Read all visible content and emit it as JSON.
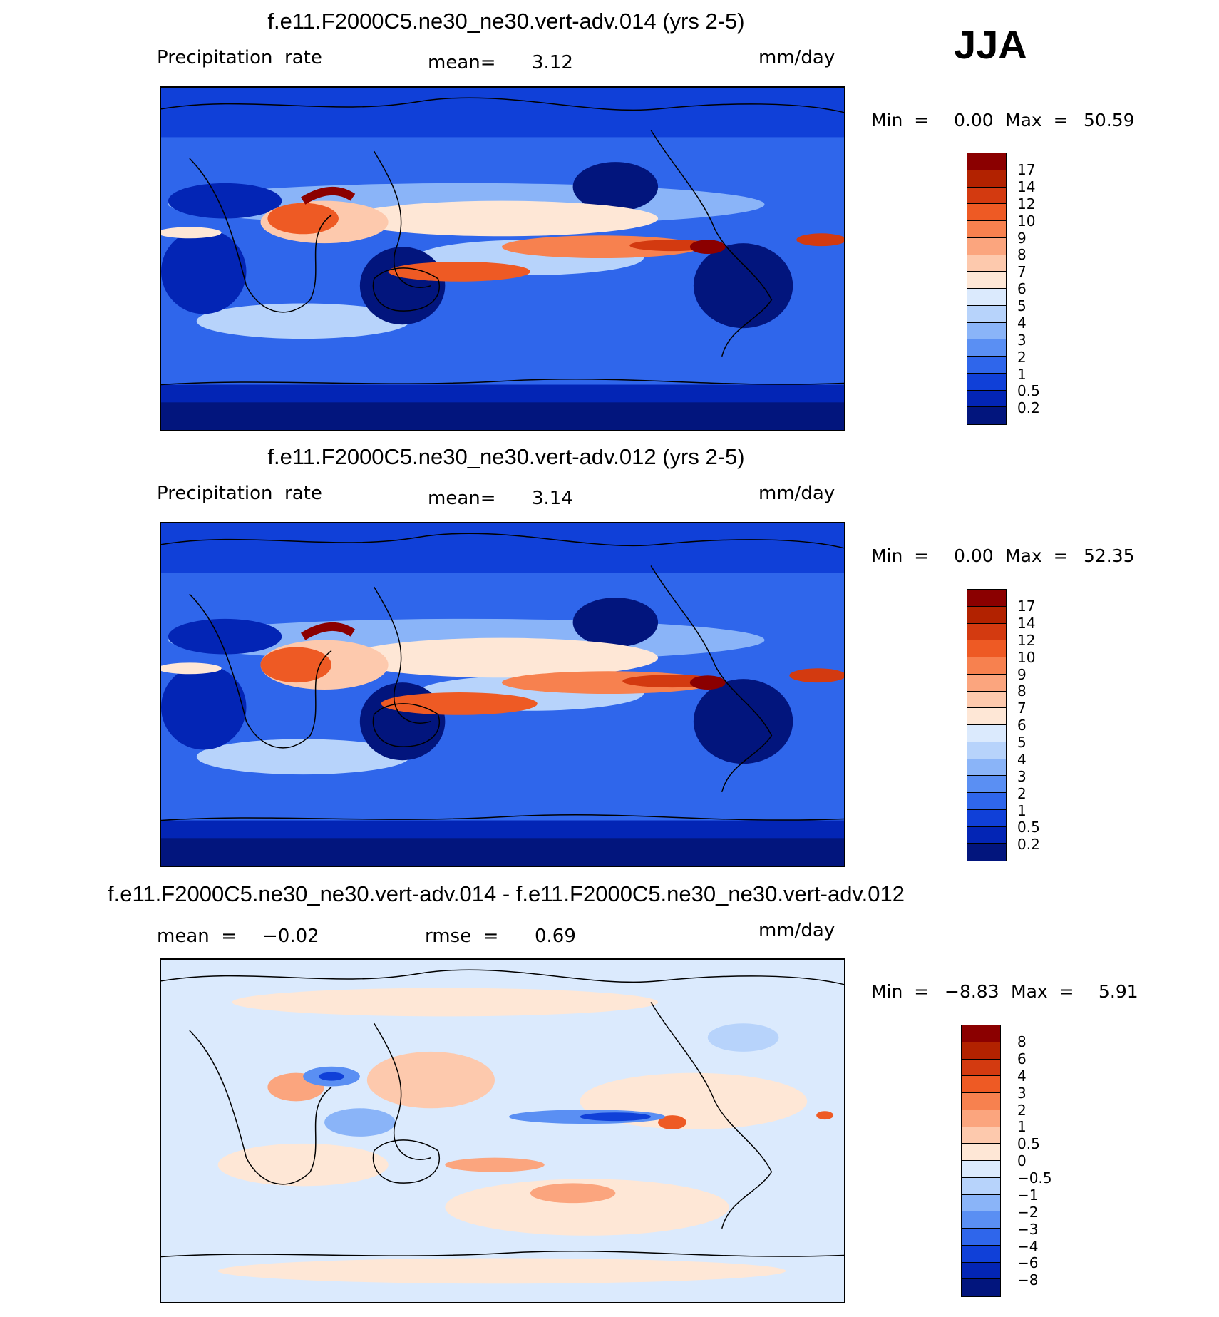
{
  "season": "JJA",
  "panels": [
    {
      "title": "f.e11.F2000C5.ne30_ne30.vert-adv.014 (yrs 2-5)",
      "left_label": "Precipitation  rate",
      "mid_label": "mean=",
      "mid_value": "3.12",
      "right_label": "mm/day",
      "min_label": "Min  =",
      "min_value": "0.00",
      "max_label": "Max  =",
      "max_value": "50.59",
      "colorbar_labels": [
        "17",
        "14",
        "12",
        "10",
        "9",
        "8",
        "7",
        "6",
        "5",
        "4",
        "3",
        "2",
        "1",
        "0.5",
        "0.2"
      ]
    },
    {
      "title": "f.e11.F2000C5.ne30_ne30.vert-adv.012 (yrs 2-5)",
      "left_label": "Precipitation  rate",
      "mid_label": "mean=",
      "mid_value": "3.14",
      "right_label": "mm/day",
      "min_label": "Min  =",
      "min_value": "0.00",
      "max_label": "Max  =",
      "max_value": "52.35",
      "colorbar_labels": [
        "17",
        "14",
        "12",
        "10",
        "9",
        "8",
        "7",
        "6",
        "5",
        "4",
        "3",
        "2",
        "1",
        "0.5",
        "0.2"
      ]
    },
    {
      "title": "f.e11.F2000C5.ne30_ne30.vert-adv.014 - f.e11.F2000C5.ne30_ne30.vert-adv.012",
      "left_label": "mean  =",
      "left_value": "−0.02",
      "mid_label": "rmse  =",
      "mid_value": "0.69",
      "right_label": "mm/day",
      "min_label": "Min  =",
      "min_value": "−8.83",
      "max_label": "Max  =",
      "max_value": "5.91",
      "colorbar_labels": [
        "8",
        "6",
        "4",
        "3",
        "2",
        "1",
        "0.5",
        "0",
        "−0.5",
        "−1",
        "−2",
        "−3",
        "−4",
        "−6",
        "−8"
      ]
    }
  ],
  "colors": {
    "precip_scale": [
      "#8b0000",
      "#b22200",
      "#d33a10",
      "#ee5a24",
      "#f7814f",
      "#fba57e",
      "#fdc9ad",
      "#fee7d6",
      "#dbeafd",
      "#b7d3fb",
      "#8ab4f8",
      "#5a8ff3",
      "#2f66eb",
      "#1040d8",
      "#0325b5",
      "#02157d"
    ],
    "diff_scale": [
      "#8b0000",
      "#b22200",
      "#d33a10",
      "#ee5a24",
      "#f7814f",
      "#fba57e",
      "#fdc9ad",
      "#fee7d6",
      "#dbeafd",
      "#b7d3fb",
      "#8ab4f8",
      "#5a8ff3",
      "#2f66eb",
      "#1040d8",
      "#0325b5",
      "#02157d"
    ]
  }
}
